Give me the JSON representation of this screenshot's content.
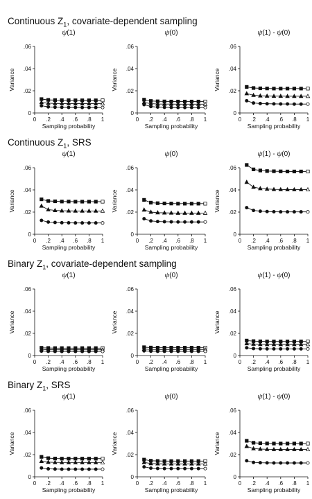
{
  "sections": [
    {
      "title": "Continuous Z",
      "subscript": "1",
      "suffix": ", covariate-dependent sampling"
    },
    {
      "title": "Continuous Z",
      "subscript": "1",
      "suffix": ", SRS"
    },
    {
      "title": "Binary Z",
      "subscript": "1",
      "suffix": ", covariate-dependent sampling"
    },
    {
      "title": "Binary Z",
      "subscript": "1",
      "suffix": ", SRS"
    }
  ],
  "panel_titles": [
    {
      "psi": "ψ",
      "arg": "(1)",
      "rest": ""
    },
    {
      "psi": "ψ",
      "arg": "(0)",
      "rest": ""
    },
    {
      "psi": "ψ",
      "arg": "(1) - ",
      "psi2": "ψ",
      "arg2": "(0)"
    }
  ],
  "chart_data": [
    {
      "section": 0,
      "type": "line",
      "title": "ψ(1)",
      "xlabel": "Sampling probability",
      "ylabel": "Variance",
      "xlim": [
        0,
        1
      ],
      "ylim": [
        0,
        0.06
      ],
      "xticks": [
        "0",
        ".2",
        ".4",
        ".6",
        ".8",
        "1"
      ],
      "yticks": [
        "0",
        ".02",
        ".04",
        ".06"
      ],
      "x": [
        0.1,
        0.2,
        0.3,
        0.4,
        0.5,
        0.6,
        0.7,
        0.8,
        0.9,
        1.0
      ],
      "series": [
        {
          "marker": "square",
          "values": [
            0.0125,
            0.0118,
            0.0116,
            0.0115,
            0.0115,
            0.0114,
            0.0114,
            0.0114,
            0.0114,
            0.0114
          ]
        },
        {
          "marker": "triangle",
          "values": [
            0.0095,
            0.0088,
            0.0086,
            0.0085,
            0.0085,
            0.0084,
            0.0084,
            0.0084,
            0.0084,
            0.0084
          ]
        },
        {
          "marker": "circle",
          "values": [
            0.0065,
            0.0055,
            0.0052,
            0.0051,
            0.005,
            0.005,
            0.0049,
            0.0049,
            0.0049,
            0.0049
          ]
        }
      ]
    },
    {
      "section": 0,
      "type": "line",
      "title": "ψ(0)",
      "xlabel": "Sampling probability",
      "ylabel": "Variance",
      "xlim": [
        0,
        1
      ],
      "ylim": [
        0,
        0.06
      ],
      "xticks": [
        "0",
        ".2",
        ".4",
        ".6",
        ".8",
        "1"
      ],
      "yticks": [
        "0",
        ".02",
        ".04",
        ".06"
      ],
      "x": [
        0.1,
        0.2,
        0.3,
        0.4,
        0.5,
        0.6,
        0.7,
        0.8,
        0.9,
        1.0
      ],
      "series": [
        {
          "marker": "square",
          "values": [
            0.012,
            0.0108,
            0.0105,
            0.0104,
            0.0103,
            0.0103,
            0.0103,
            0.0103,
            0.0103,
            0.0103
          ]
        },
        {
          "marker": "triangle",
          "values": [
            0.0095,
            0.0084,
            0.0081,
            0.008,
            0.008,
            0.0079,
            0.0079,
            0.0079,
            0.0079,
            0.0079
          ]
        },
        {
          "marker": "circle",
          "values": [
            0.0075,
            0.0058,
            0.0053,
            0.0051,
            0.005,
            0.0049,
            0.0049,
            0.0049,
            0.0049,
            0.0049
          ]
        }
      ]
    },
    {
      "section": 0,
      "type": "line",
      "title": "ψ(1) - ψ(0)",
      "xlabel": "Sampling probability",
      "ylabel": "Variance",
      "xlim": [
        0,
        1
      ],
      "ylim": [
        0,
        0.06
      ],
      "xticks": [
        "0",
        ".2",
        ".4",
        ".6",
        ".8",
        "1"
      ],
      "yticks": [
        "0",
        ".02",
        ".04",
        ".06"
      ],
      "x": [
        0.1,
        0.2,
        0.3,
        0.4,
        0.5,
        0.6,
        0.7,
        0.8,
        0.9,
        1.0
      ],
      "series": [
        {
          "marker": "square",
          "values": [
            0.0235,
            0.0225,
            0.0222,
            0.0221,
            0.022,
            0.022,
            0.022,
            0.022,
            0.022,
            0.022
          ]
        },
        {
          "marker": "triangle",
          "values": [
            0.0175,
            0.016,
            0.0155,
            0.0153,
            0.0152,
            0.0152,
            0.0151,
            0.0151,
            0.0151,
            0.0151
          ]
        },
        {
          "marker": "circle",
          "values": [
            0.011,
            0.009,
            0.0085,
            0.0083,
            0.0082,
            0.0081,
            0.0081,
            0.008,
            0.008,
            0.008
          ]
        }
      ]
    },
    {
      "section": 1,
      "type": "line",
      "title": "ψ(1)",
      "xlabel": "Sampling probability",
      "ylabel": "Variance",
      "xlim": [
        0,
        1
      ],
      "ylim": [
        0,
        0.06
      ],
      "xticks": [
        "0",
        ".2",
        ".4",
        ".6",
        ".8",
        "1"
      ],
      "yticks": [
        "0",
        ".02",
        ".04",
        ".06"
      ],
      "x": [
        0.1,
        0.2,
        0.3,
        0.4,
        0.5,
        0.6,
        0.7,
        0.8,
        0.9,
        1.0
      ],
      "series": [
        {
          "marker": "square",
          "values": [
            0.0315,
            0.03,
            0.0297,
            0.0295,
            0.0295,
            0.0294,
            0.0294,
            0.0294,
            0.0294,
            0.0294
          ]
        },
        {
          "marker": "triangle",
          "values": [
            0.0255,
            0.0222,
            0.0215,
            0.0212,
            0.0211,
            0.021,
            0.021,
            0.021,
            0.021,
            0.021
          ]
        },
        {
          "marker": "circle",
          "values": [
            0.0125,
            0.011,
            0.0106,
            0.0104,
            0.0103,
            0.0102,
            0.0102,
            0.0102,
            0.0102,
            0.0102
          ]
        }
      ]
    },
    {
      "section": 1,
      "type": "line",
      "title": "ψ(0)",
      "xlabel": "Sampling probability",
      "ylabel": "Variance",
      "xlim": [
        0,
        1
      ],
      "ylim": [
        0,
        0.06
      ],
      "xticks": [
        "0",
        ".2",
        ".4",
        ".6",
        ".8",
        "1"
      ],
      "yticks": [
        "0",
        ".02",
        ".04",
        ".06"
      ],
      "x": [
        0.1,
        0.2,
        0.3,
        0.4,
        0.5,
        0.6,
        0.7,
        0.8,
        0.9,
        1.0
      ],
      "series": [
        {
          "marker": "square",
          "values": [
            0.031,
            0.0285,
            0.028,
            0.0278,
            0.0277,
            0.0276,
            0.0276,
            0.0276,
            0.0276,
            0.0276
          ]
        },
        {
          "marker": "triangle",
          "values": [
            0.022,
            0.02,
            0.0195,
            0.0193,
            0.0192,
            0.0191,
            0.0191,
            0.0191,
            0.0191,
            0.0191
          ]
        },
        {
          "marker": "circle",
          "values": [
            0.014,
            0.012,
            0.0115,
            0.0113,
            0.0112,
            0.0111,
            0.0111,
            0.0111,
            0.0111,
            0.0111
          ]
        }
      ]
    },
    {
      "section": 1,
      "type": "line",
      "title": "ψ(1) - ψ(0)",
      "xlabel": "Sampling probability",
      "ylabel": "Variance",
      "xlim": [
        0,
        1
      ],
      "ylim": [
        0,
        0.06
      ],
      "xticks": [
        "0",
        ".2",
        ".4",
        ".6",
        ".8",
        "1"
      ],
      "yticks": [
        "0",
        ".02",
        ".04",
        ".06"
      ],
      "x": [
        0.1,
        0.2,
        0.3,
        0.4,
        0.5,
        0.6,
        0.7,
        0.8,
        0.9,
        1.0
      ],
      "series": [
        {
          "marker": "square",
          "values": [
            0.0625,
            0.0585,
            0.0575,
            0.057,
            0.0568,
            0.0567,
            0.0566,
            0.0566,
            0.0566,
            0.0566
          ]
        },
        {
          "marker": "triangle",
          "values": [
            0.047,
            0.0425,
            0.0413,
            0.0408,
            0.0405,
            0.0404,
            0.0403,
            0.0403,
            0.0403,
            0.0403
          ]
        },
        {
          "marker": "circle",
          "values": [
            0.024,
            0.0215,
            0.0208,
            0.0205,
            0.0203,
            0.0202,
            0.0202,
            0.0202,
            0.0202,
            0.0202
          ]
        }
      ]
    },
    {
      "section": 2,
      "type": "line",
      "title": "ψ(1)",
      "xlabel": "Sampling probability",
      "ylabel": "Variance",
      "xlim": [
        0,
        1
      ],
      "ylim": [
        0,
        0.06
      ],
      "xticks": [
        "0",
        ".2",
        ".4",
        ".6",
        ".8",
        "1"
      ],
      "yticks": [
        "0",
        ".02",
        ".04",
        ".06"
      ],
      "x": [
        0.1,
        0.2,
        0.3,
        0.4,
        0.5,
        0.6,
        0.7,
        0.8,
        0.9,
        1.0
      ],
      "series": [
        {
          "marker": "square",
          "values": [
            0.007,
            0.0068,
            0.0067,
            0.0067,
            0.0067,
            0.0067,
            0.0067,
            0.0067,
            0.0067,
            0.0067
          ]
        },
        {
          "marker": "triangle",
          "values": [
            0.0055,
            0.0053,
            0.0052,
            0.0052,
            0.0052,
            0.0052,
            0.0052,
            0.0052,
            0.0052,
            0.0052
          ]
        },
        {
          "marker": "circle",
          "values": [
            0.004,
            0.0038,
            0.0037,
            0.0037,
            0.0037,
            0.0037,
            0.0037,
            0.0037,
            0.0037,
            0.0037
          ]
        }
      ]
    },
    {
      "section": 2,
      "type": "line",
      "title": "ψ(0)",
      "xlabel": "Sampling probability",
      "ylabel": "Variance",
      "xlim": [
        0,
        1
      ],
      "ylim": [
        0,
        0.06
      ],
      "xticks": [
        "0",
        ".2",
        ".4",
        ".6",
        ".8",
        "1"
      ],
      "yticks": [
        "0",
        ".02",
        ".04",
        ".06"
      ],
      "x": [
        0.1,
        0.2,
        0.3,
        0.4,
        0.5,
        0.6,
        0.7,
        0.8,
        0.9,
        1.0
      ],
      "series": [
        {
          "marker": "square",
          "values": [
            0.0075,
            0.0072,
            0.0071,
            0.0071,
            0.0071,
            0.0071,
            0.0071,
            0.0071,
            0.0071,
            0.0071
          ]
        },
        {
          "marker": "triangle",
          "values": [
            0.0058,
            0.0055,
            0.0054,
            0.0054,
            0.0054,
            0.0054,
            0.0054,
            0.0054,
            0.0054,
            0.0054
          ]
        },
        {
          "marker": "circle",
          "values": [
            0.0042,
            0.0039,
            0.0038,
            0.0038,
            0.0038,
            0.0038,
            0.0038,
            0.0038,
            0.0038,
            0.0038
          ]
        }
      ]
    },
    {
      "section": 2,
      "type": "line",
      "title": "ψ(1) - ψ(0)",
      "xlabel": "Sampling probability",
      "ylabel": "Variance",
      "xlim": [
        0,
        1
      ],
      "ylim": [
        0,
        0.06
      ],
      "xticks": [
        "0",
        ".2",
        ".4",
        ".6",
        ".8",
        "1"
      ],
      "yticks": [
        "0",
        ".02",
        ".04",
        ".06"
      ],
      "x": [
        0.1,
        0.2,
        0.3,
        0.4,
        0.5,
        0.6,
        0.7,
        0.8,
        0.9,
        1.0
      ],
      "series": [
        {
          "marker": "square",
          "values": [
            0.0135,
            0.013,
            0.0128,
            0.0127,
            0.0127,
            0.0127,
            0.0127,
            0.0127,
            0.0127,
            0.0127
          ]
        },
        {
          "marker": "triangle",
          "values": [
            0.0108,
            0.0103,
            0.0101,
            0.01,
            0.01,
            0.01,
            0.01,
            0.01,
            0.01,
            0.01
          ]
        },
        {
          "marker": "circle",
          "values": [
            0.007,
            0.0063,
            0.0061,
            0.006,
            0.006,
            0.006,
            0.006,
            0.006,
            0.006,
            0.006
          ]
        }
      ]
    },
    {
      "section": 3,
      "type": "line",
      "title": "ψ(1)",
      "xlabel": "Sampling probability",
      "ylabel": "Variance",
      "xlim": [
        0,
        1
      ],
      "ylim": [
        0,
        0.06
      ],
      "xticks": [
        "0",
        ".2",
        ".4",
        ".6",
        ".8",
        "1"
      ],
      "yticks": [
        "0",
        ".02",
        ".04",
        ".06"
      ],
      "x": [
        0.1,
        0.2,
        0.3,
        0.4,
        0.5,
        0.6,
        0.7,
        0.8,
        0.9,
        1.0
      ],
      "series": [
        {
          "marker": "square",
          "values": [
            0.018,
            0.0168,
            0.0165,
            0.0164,
            0.0164,
            0.0164,
            0.0164,
            0.0164,
            0.0164,
            0.0164
          ]
        },
        {
          "marker": "triangle",
          "values": [
            0.014,
            0.0132,
            0.013,
            0.0129,
            0.0129,
            0.0129,
            0.0129,
            0.0129,
            0.0129,
            0.0129
          ]
        },
        {
          "marker": "circle",
          "values": [
            0.008,
            0.0072,
            0.007,
            0.0069,
            0.0069,
            0.0069,
            0.0069,
            0.0069,
            0.0069,
            0.0069
          ]
        }
      ]
    },
    {
      "section": 3,
      "type": "line",
      "title": "ψ(0)",
      "xlabel": "Sampling probability",
      "ylabel": "Variance",
      "xlim": [
        0,
        1
      ],
      "ylim": [
        0,
        0.06
      ],
      "xticks": [
        "0",
        ".2",
        ".4",
        ".6",
        ".8",
        "1"
      ],
      "yticks": [
        "0",
        ".02",
        ".04",
        ".06"
      ],
      "x": [
        0.1,
        0.2,
        0.3,
        0.4,
        0.5,
        0.6,
        0.7,
        0.8,
        0.9,
        1.0
      ],
      "series": [
        {
          "marker": "square",
          "values": [
            0.0155,
            0.0145,
            0.0143,
            0.0142,
            0.0142,
            0.0142,
            0.0142,
            0.0142,
            0.0142,
            0.0142
          ]
        },
        {
          "marker": "triangle",
          "values": [
            0.013,
            0.012,
            0.0118,
            0.0117,
            0.0117,
            0.0117,
            0.0117,
            0.0117,
            0.0117,
            0.0117
          ]
        },
        {
          "marker": "circle",
          "values": [
            0.009,
            0.0078,
            0.0075,
            0.0074,
            0.0074,
            0.0074,
            0.0074,
            0.0074,
            0.0074,
            0.0074
          ]
        }
      ]
    },
    {
      "section": 3,
      "type": "line",
      "title": "ψ(1) - ψ(0)",
      "xlabel": "Sampling probability",
      "ylabel": "Variance",
      "xlim": [
        0,
        1
      ],
      "ylim": [
        0,
        0.06
      ],
      "xticks": [
        "0",
        ".2",
        ".4",
        ".6",
        ".8",
        "1"
      ],
      "yticks": [
        "0",
        ".02",
        ".04",
        ".06"
      ],
      "x": [
        0.1,
        0.2,
        0.3,
        0.4,
        0.5,
        0.6,
        0.7,
        0.8,
        0.9,
        1.0
      ],
      "series": [
        {
          "marker": "square",
          "values": [
            0.0325,
            0.0307,
            0.0303,
            0.0301,
            0.03,
            0.03,
            0.03,
            0.03,
            0.03,
            0.03
          ]
        },
        {
          "marker": "triangle",
          "values": [
            0.0275,
            0.0255,
            0.025,
            0.0248,
            0.0247,
            0.0247,
            0.0247,
            0.0247,
            0.0247,
            0.0247
          ]
        },
        {
          "marker": "circle",
          "values": [
            0.0145,
            0.013,
            0.0127,
            0.0126,
            0.0125,
            0.0125,
            0.0125,
            0.0125,
            0.0125,
            0.0125
          ]
        }
      ]
    }
  ]
}
